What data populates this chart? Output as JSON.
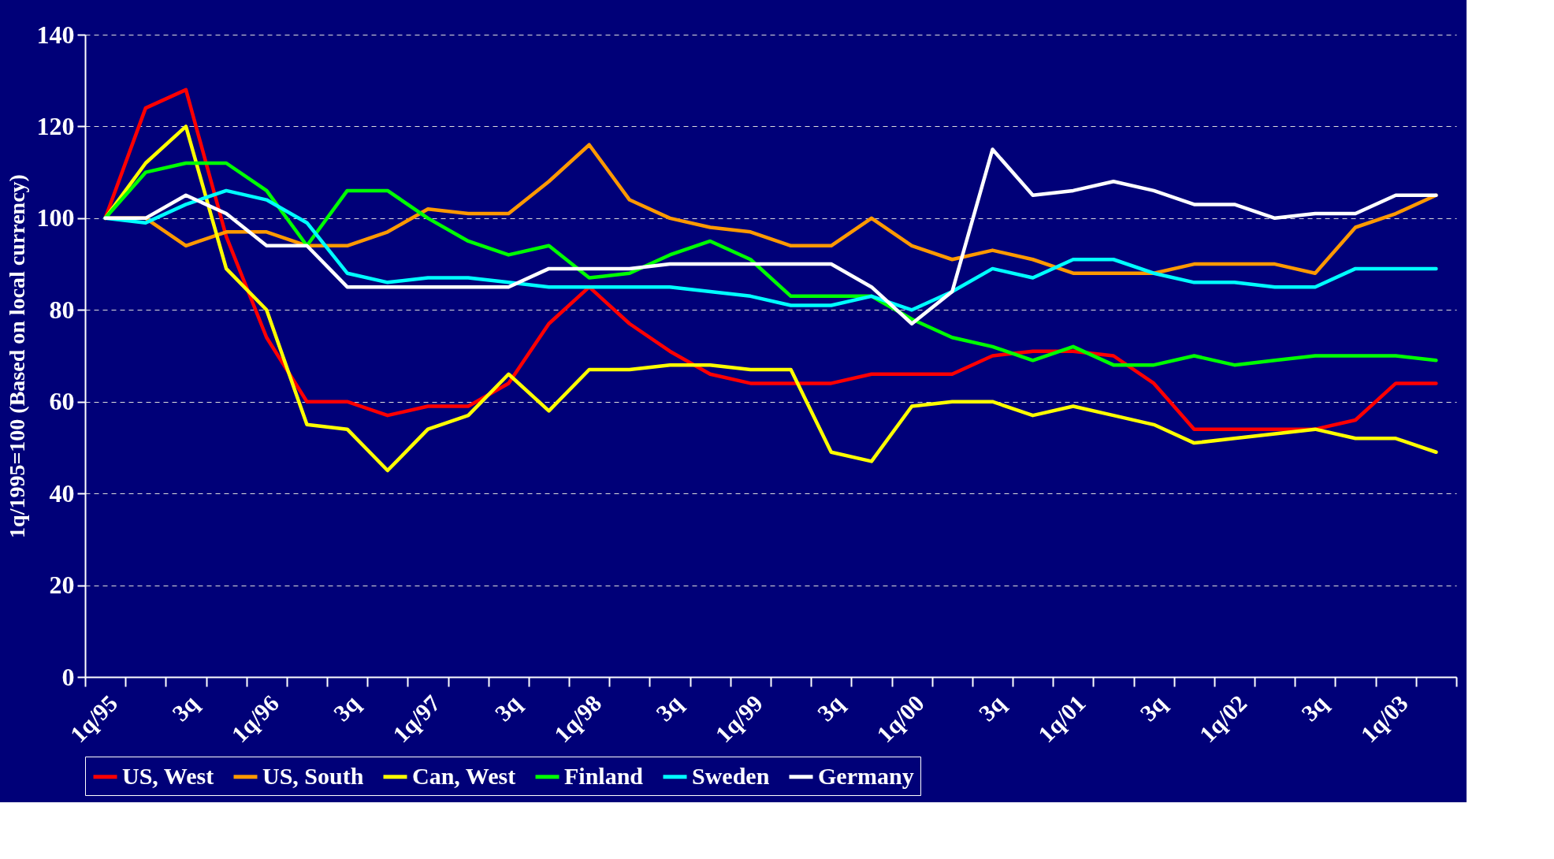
{
  "chart_data": {
    "type": "line",
    "ylabel": "1q/1995=100 (Based on local currency)",
    "categories": [
      "1q/95",
      null,
      "3q",
      null,
      "1q/96",
      null,
      "3q",
      null,
      "1q/97",
      null,
      "3q",
      null,
      "1q/98",
      null,
      "3q",
      null,
      "1q/99",
      null,
      "3q",
      null,
      "1q/00",
      null,
      "3q",
      null,
      "1q/01",
      null,
      "3q",
      null,
      "1q/02",
      null,
      "3q",
      null,
      "1q/03",
      null
    ],
    "ylim": [
      0,
      140
    ],
    "yticks": [
      0,
      20,
      40,
      60,
      80,
      100,
      120,
      140
    ],
    "grid": "y",
    "legend": "bottom",
    "line_style": "solid",
    "series": [
      {
        "name": "US, West",
        "color": "#ff0000",
        "values": [
          100,
          124,
          128,
          96,
          74,
          60,
          60,
          57,
          59,
          59,
          64,
          77,
          85,
          77,
          71,
          66,
          64,
          64,
          64,
          66,
          66,
          66,
          70,
          71,
          71,
          70,
          64,
          54,
          54,
          54,
          54,
          56,
          64,
          64
        ]
      },
      {
        "name": "US, South",
        "color": "#ff9900",
        "values": [
          100,
          100,
          94,
          97,
          97,
          94,
          94,
          97,
          102,
          101,
          101,
          108,
          116,
          104,
          100,
          98,
          97,
          94,
          94,
          100,
          94,
          91,
          93,
          91,
          88,
          88,
          88,
          90,
          90,
          90,
          88,
          98,
          101,
          105
        ]
      },
      {
        "name": "Can, West",
        "color": "#ffff00",
        "values": [
          100,
          112,
          120,
          89,
          80,
          55,
          54,
          45,
          54,
          57,
          66,
          58,
          67,
          67,
          68,
          68,
          67,
          67,
          49,
          47,
          59,
          60,
          60,
          57,
          59,
          57,
          55,
          51,
          52,
          53,
          54,
          52,
          52,
          49
        ]
      },
      {
        "name": "Finland",
        "color": "#00ff00",
        "values": [
          100,
          110,
          112,
          112,
          106,
          94,
          106,
          106,
          100,
          95,
          92,
          94,
          87,
          88,
          92,
          95,
          91,
          83,
          83,
          83,
          78,
          74,
          72,
          69,
          72,
          68,
          68,
          70,
          68,
          69,
          70,
          70,
          70,
          69
        ]
      },
      {
        "name": "Sweden",
        "color": "#00ffff",
        "values": [
          100,
          99,
          103,
          106,
          104,
          99,
          88,
          86,
          87,
          87,
          86,
          85,
          85,
          85,
          85,
          84,
          83,
          81,
          81,
          83,
          80,
          84,
          89,
          87,
          91,
          91,
          88,
          86,
          86,
          85,
          85,
          89,
          89,
          89
        ]
      },
      {
        "name": "Germany",
        "color": "#ffffff",
        "values": [
          100,
          100,
          105,
          101,
          94,
          94,
          85,
          85,
          85,
          85,
          85,
          89,
          89,
          89,
          90,
          90,
          90,
          90,
          90,
          85,
          77,
          84,
          115,
          105,
          106,
          108,
          106,
          103,
          103,
          100,
          101,
          101,
          105,
          105
        ]
      }
    ]
  }
}
